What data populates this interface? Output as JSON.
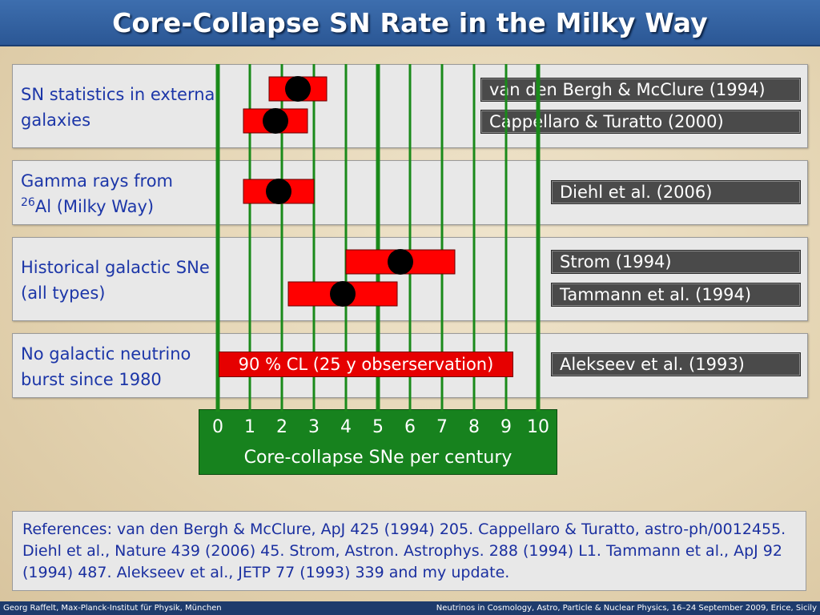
{
  "title": "Core-Collapse SN Rate in the Milky Way",
  "groups": [
    {
      "label": "SN statistics in external galaxies"
    },
    {
      "label_main": "Gamma rays from",
      "label_sup": "26",
      "label_rest": "Al (Milky Way)"
    },
    {
      "label": "Historical galactic SNe (all types)"
    },
    {
      "label": "No galactic neutrino burst since 1980"
    }
  ],
  "cl_label": "90 % CL (25 y obserservation)",
  "chart_data": {
    "type": "range",
    "xlabel": "Core-collapse SNe per century",
    "xlim": [
      0,
      10
    ],
    "ticks": [
      "0",
      "1",
      "2",
      "3",
      "4",
      "5",
      "6",
      "7",
      "8",
      "9",
      "10"
    ],
    "measurements": [
      {
        "name": "van den Bergh & McClure (1994)",
        "group": 0,
        "center": 2.5,
        "low": 1.6,
        "high": 3.4
      },
      {
        "name": "Cappellaro & Turatto (2000)",
        "group": 0,
        "center": 1.8,
        "low": 0.8,
        "high": 2.8
      },
      {
        "name": "Diehl et al. (2006)",
        "group": 1,
        "center": 1.9,
        "low": 0.8,
        "high": 3.0
      },
      {
        "name": "Strom (1994)",
        "group": 2,
        "center": 5.7,
        "low": 4.0,
        "high": 7.4
      },
      {
        "name": "Tammann et al. (1994)",
        "group": 2,
        "center": 3.9,
        "low": 2.2,
        "high": 5.6
      },
      {
        "name": "Alekseev et al. (1993)",
        "group": 3,
        "center": null,
        "low": 0,
        "high": 9.25
      }
    ]
  },
  "references": "References: van den Bergh & McClure, ApJ 425 (1994) 205. Cappellaro & Turatto, astro-ph/0012455. Diehl et al., Nature 439 (2006) 45. Strom, Astron. Astrophys. 288 (1994) L1. Tammann et al., ApJ 92 (1994) 487. Alekseev et al., JETP 77 (1993) 339 and my update.",
  "footer": {
    "left": "Georg Raffelt, Max-Planck-Institut für Physik, München",
    "right": "Neutrinos in Cosmology, Astro, Particle & Nuclear Physics, 16–24 September 2009, Erice, Sicily"
  },
  "colors": {
    "bar": "#ff0000",
    "point": "#000000",
    "gridline": "#1a8a1a",
    "axis_box": "#17821e",
    "label_text": "#1c36a8"
  }
}
